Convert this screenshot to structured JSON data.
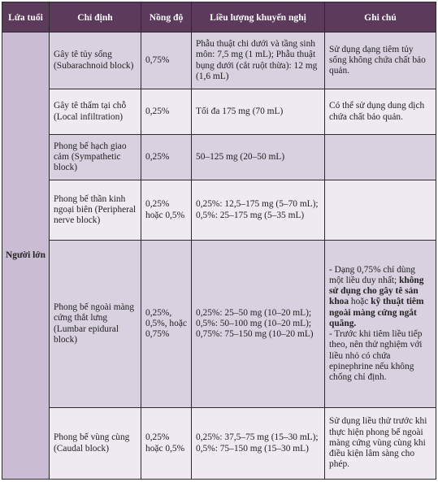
{
  "header": {
    "age": "Lứa tuổi",
    "indication": "Chỉ định",
    "concentration": "Nồng độ",
    "dose": "Liều lượng khuyến nghị",
    "note": "Ghi chú"
  },
  "age_group": "Người lớn",
  "rows": [
    {
      "indication": "Gây tê tủy sống (Subarachnoid block)",
      "concentration": "0,75%",
      "dose": "Phẫu thuật chi dưới và tầng sinh môn: 7,5 mg (1 mL); Phẫu thuật bụng dưới (cắt ruột thừa): 12 mg (1,6 mL)",
      "note": "Sử dụng dạng tiêm tủy sống không chứa chất bảo quản."
    },
    {
      "indication": "Gây tê thấm tại chỗ (Local infiltration)",
      "concentration": "0,25%",
      "dose": "Tối đa 175 mg (70 mL)",
      "note": "Có thể sử dụng dung dịch chứa chất bảo quản."
    },
    {
      "indication": "Phong bế hạch giao cảm (Sympathetic block)",
      "concentration": "0,25%",
      "dose": "50–125 mg (20–50 mL)",
      "note": ""
    },
    {
      "indication": "Phong bế thần kinh ngoại biên (Peripheral nerve block)",
      "concentration": "0,25% hoặc 0,5%",
      "dose_lines": [
        "0,25%: 12,5–175 mg (5–70 mL);",
        "0,5%: 25–175 mg (5–35 mL)"
      ],
      "note": ""
    },
    {
      "indication": "Phong bế ngoài màng cứng thắt lưng (Lumbar epidural block)",
      "concentration": "0,25%, 0,5%, hoặc 0,75%",
      "dose_lines": [
        "0,25%: 25–50 mg (10–20 mL);",
        "0,5%: 50–100 mg (10–20 mL);",
        "0,75%: 75–150 mg (10–20 mL)"
      ],
      "note_parts": {
        "p1": "- Dạng 0,75% chỉ dùng một liều duy nhất; ",
        "b1": "không sử dụng cho gây tê sản khoa",
        "p2": " hoặc ",
        "b2": "kỹ thuật tiêm ngoài màng cứng ngắt quãng.",
        "p3": "- Trước khi tiêm liều tiếp theo, nên thử nghiệm với liều nhỏ có chứa epinephrine nếu không chống chỉ định."
      }
    },
    {
      "indication": "Phong bế vùng cùng (Caudal block)",
      "concentration": "0,25% hoặc 0,5%",
      "dose_lines": [
        "0,25%: 37,5–75 mg (15–30 mL);",
        "0,5%: 75–150 mg (15–30 mL)"
      ],
      "note": "Sử dụng liều thử trước khi thực hiện phong bế ngoài màng cứng vùng cùng khi điều kiện lâm sàng cho phép."
    }
  ]
}
